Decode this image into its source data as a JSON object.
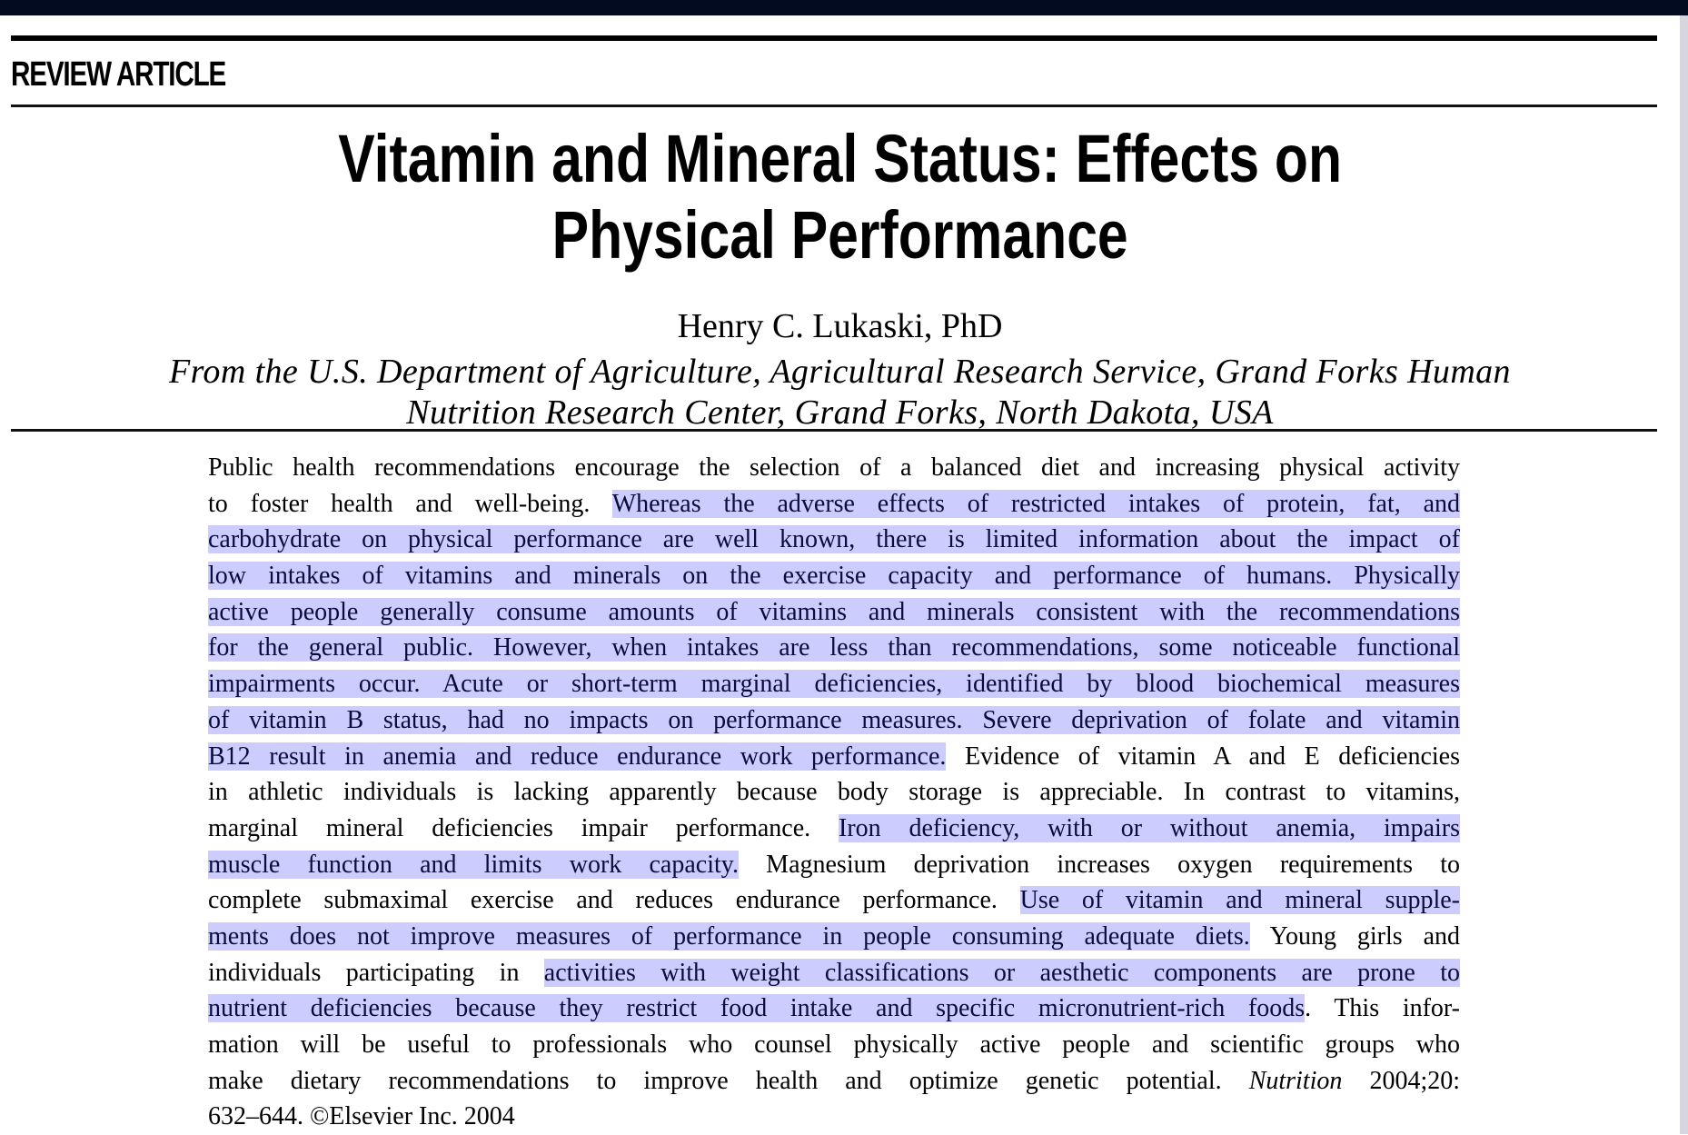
{
  "viewer": {
    "topbar_color": "#020b20",
    "highlight_color": "#ccccff"
  },
  "article": {
    "section_label": "REVIEW ARTICLE",
    "title_lines": [
      "Vitamin and Mineral Status: Effects on",
      "Physical Performance"
    ],
    "author": "Henry C. Lukaski, PhD",
    "affiliation_lines": [
      "From the U.S. Department of Agriculture, Agricultural Research Service, Grand Forks Human",
      "Nutrition Research Center, Grand Forks, North Dakota, USA"
    ]
  },
  "abstract": {
    "lines": [
      {
        "segments": [
          {
            "t": "Public health recommendations encourage the selection of a balanced diet and increasing physical activity",
            "hl": false
          }
        ]
      },
      {
        "segments": [
          {
            "t": "to foster health and well-being. ",
            "hl": false
          },
          {
            "t": "Whereas the adverse effects of restricted intakes of protein, fat, and",
            "hl": true
          }
        ]
      },
      {
        "segments": [
          {
            "t": "carbohydrate on physical performance are well known, there is limited information about the impact of",
            "hl": true
          }
        ]
      },
      {
        "segments": [
          {
            "t": "low intakes of vitamins and minerals on the exercise capacity and performance of humans. Physically",
            "hl": true
          }
        ]
      },
      {
        "segments": [
          {
            "t": "active people generally consume amounts of vitamins and minerals consistent with the recommendations",
            "hl": true
          }
        ]
      },
      {
        "segments": [
          {
            "t": "for the general public. However, when intakes are less than recommendations, some noticeable functional",
            "hl": true
          }
        ]
      },
      {
        "segments": [
          {
            "t": "impairments occur. Acute or short-term marginal deficiencies, identified by blood biochemical measures",
            "hl": true
          }
        ]
      },
      {
        "segments": [
          {
            "t": "of vitamin B status, had no impacts on performance measures. Severe deprivation of folate and vitamin",
            "hl": true
          }
        ]
      },
      {
        "segments": [
          {
            "t": "B12 result in anemia and reduce endurance work performance.",
            "hl": true
          },
          {
            "t": " Evidence of vitamin A and E deficiencies",
            "hl": false
          }
        ]
      },
      {
        "segments": [
          {
            "t": "in athletic individuals is lacking apparently because body storage is appreciable. In contrast to vitamins,",
            "hl": false
          }
        ]
      },
      {
        "segments": [
          {
            "t": "marginal mineral deficiencies impair performance. ",
            "hl": false
          },
          {
            "t": "Iron deficiency, with or without anemia, impairs",
            "hl": true
          }
        ]
      },
      {
        "segments": [
          {
            "t": "muscle function and limits work capacity.",
            "hl": true
          },
          {
            "t": " Magnesium deprivation increases oxygen requirements to",
            "hl": false
          }
        ]
      },
      {
        "segments": [
          {
            "t": "complete submaximal exercise and reduces endurance performance. ",
            "hl": false
          },
          {
            "t": "Use of vitamin and mineral supple-",
            "hl": true
          }
        ]
      },
      {
        "segments": [
          {
            "t": "ments does not improve measures of performance in people consuming adequate diets.",
            "hl": true
          },
          {
            "t": " Young girls and",
            "hl": false
          }
        ]
      },
      {
        "segments": [
          {
            "t": "individuals participating in ",
            "hl": false
          },
          {
            "t": "activities with weight classifications or aesthetic components are prone to",
            "hl": true
          }
        ]
      },
      {
        "segments": [
          {
            "t": "nutrient deficiencies because they restrict food intake and specific micronutrient-rich foods",
            "hl": true
          },
          {
            "t": ". This infor-",
            "hl": false
          }
        ]
      },
      {
        "segments": [
          {
            "t": "mation will be useful to professionals who counsel physically active people and scientific groups who",
            "hl": false
          }
        ]
      },
      {
        "segments": [
          {
            "t": "make dietary recommendations to improve health and optimize genetic potential.  ",
            "hl": false
          },
          {
            "t": "Nutrition",
            "hl": false,
            "italic": true
          },
          {
            "t": " 2004;20:",
            "hl": false
          }
        ]
      },
      {
        "segments": [
          {
            "t": "632–644. ©Elsevier Inc. 2004",
            "hl": false
          }
        ]
      }
    ]
  }
}
